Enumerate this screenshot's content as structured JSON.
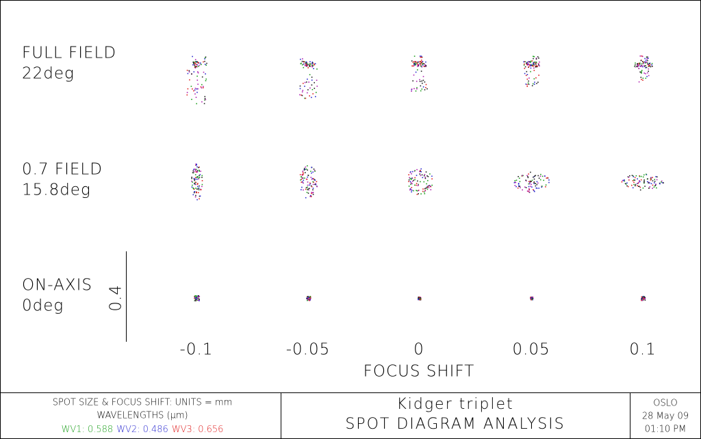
{
  "chart_data": {
    "type": "spot_diagram",
    "rows": [
      {
        "label": "FULL FIELD",
        "angle": "22deg"
      },
      {
        "label": "0.7 FIELD",
        "angle": "15.8deg"
      },
      {
        "label": "ON-AXIS",
        "angle": "0deg"
      }
    ],
    "x": [
      -0.1,
      -0.05,
      0,
      0.05,
      0.1
    ],
    "xlabel": "FOCUS SHIFT",
    "scale_bar": 0.4
  },
  "footer": {
    "units": "SPOT SIZE & FOCUS SHIFT: UNITS = mm",
    "wavelengths_title": "WAVELENGTHS (μm)",
    "wavelengths": [
      {
        "name": "WV1:",
        "value": 0.588,
        "color": "#1fa01f"
      },
      {
        "name": "WV2:",
        "value": 0.486,
        "color": "#2b2bd0"
      },
      {
        "name": "WV3:",
        "value": 0.656,
        "color": "#e02020"
      }
    ],
    "title": "Kidger triplet",
    "subtitle": "SPOT DIAGRAM ANALYSIS",
    "program": "OSLO",
    "date": "28 May 09",
    "time": "01:10 PM"
  }
}
